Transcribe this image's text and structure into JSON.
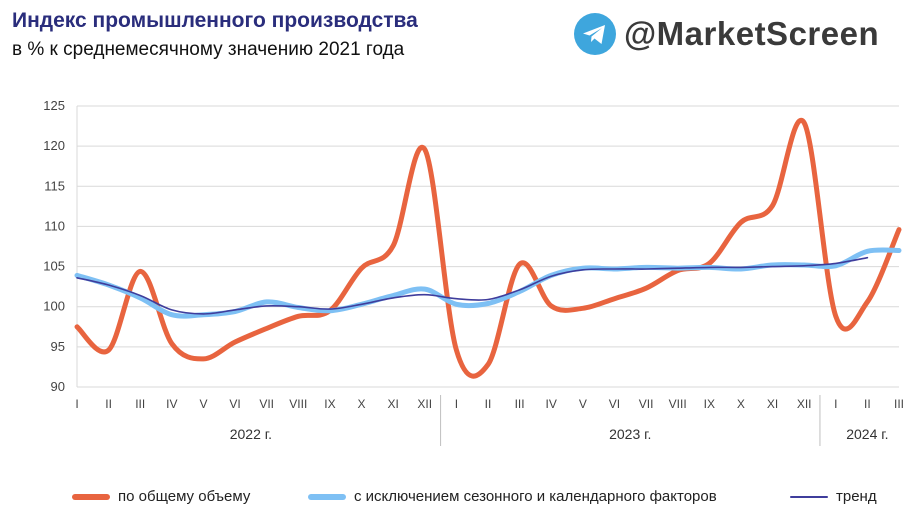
{
  "header": {
    "title": "Индекс промышленного производства",
    "subtitle": "в % к среднемесячному значению 2021 года",
    "brand": "@MarketScreen",
    "brand_icon": "telegram-icon",
    "brand_icon_color": "#3ea6dd"
  },
  "chart_data": {
    "type": "line",
    "title": "Индекс промышленного производства",
    "subtitle": "в % к среднемесячному значению 2021 года",
    "ylim": [
      90,
      125
    ],
    "yticks": [
      90,
      95,
      100,
      105,
      110,
      115,
      120,
      125
    ],
    "grid": "horizontal",
    "legend_position": "bottom",
    "categories": [
      "I",
      "II",
      "III",
      "IV",
      "V",
      "VI",
      "VII",
      "VIII",
      "IX",
      "X",
      "XI",
      "XII",
      "I",
      "II",
      "III",
      "IV",
      "V",
      "VI",
      "VII",
      "VIII",
      "IX",
      "X",
      "XI",
      "XII",
      "I",
      "II",
      "III"
    ],
    "years": [
      {
        "label": "2022 г.",
        "start": 0,
        "end": 11
      },
      {
        "label": "2023 г.",
        "start": 12,
        "end": 23
      },
      {
        "label": "2024 г.",
        "start": 24,
        "end": 26
      }
    ],
    "series": [
      {
        "name": "по общему объему",
        "color": "#e8643f",
        "width": 5,
        "values": [
          97.5,
          94.6,
          104.4,
          95.4,
          93.5,
          95.6,
          97.3,
          98.8,
          99.5,
          104.8,
          107.6,
          119.6,
          94.6,
          92.8,
          105.3,
          100.1,
          99.8,
          101.0,
          102.3,
          104.5,
          105.4,
          110.5,
          112.6,
          122.9,
          98.8,
          100.6,
          109.6
        ]
      },
      {
        "name": "с исключением сезонного и календарного факторов",
        "color": "#7ec0f4",
        "width": 5,
        "values": [
          103.9,
          102.7,
          101.1,
          99.0,
          99.0,
          99.4,
          100.6,
          99.9,
          99.5,
          100.3,
          101.4,
          102.2,
          100.3,
          100.4,
          101.9,
          103.9,
          104.8,
          104.7,
          104.9,
          104.8,
          104.9,
          104.7,
          105.2,
          105.2,
          105.1,
          106.9,
          107.0
        ]
      },
      {
        "name": "тренд",
        "color": "#3f3d9c",
        "width": 1.6,
        "values": [
          103.6,
          102.7,
          101.4,
          99.6,
          99.1,
          99.6,
          100.1,
          100.0,
          99.7,
          100.3,
          101.1,
          101.5,
          101.0,
          100.9,
          102.1,
          103.8,
          104.6,
          104.7,
          104.7,
          104.8,
          104.9,
          104.9,
          105.0,
          105.1,
          105.4,
          106.1,
          null
        ]
      }
    ]
  }
}
